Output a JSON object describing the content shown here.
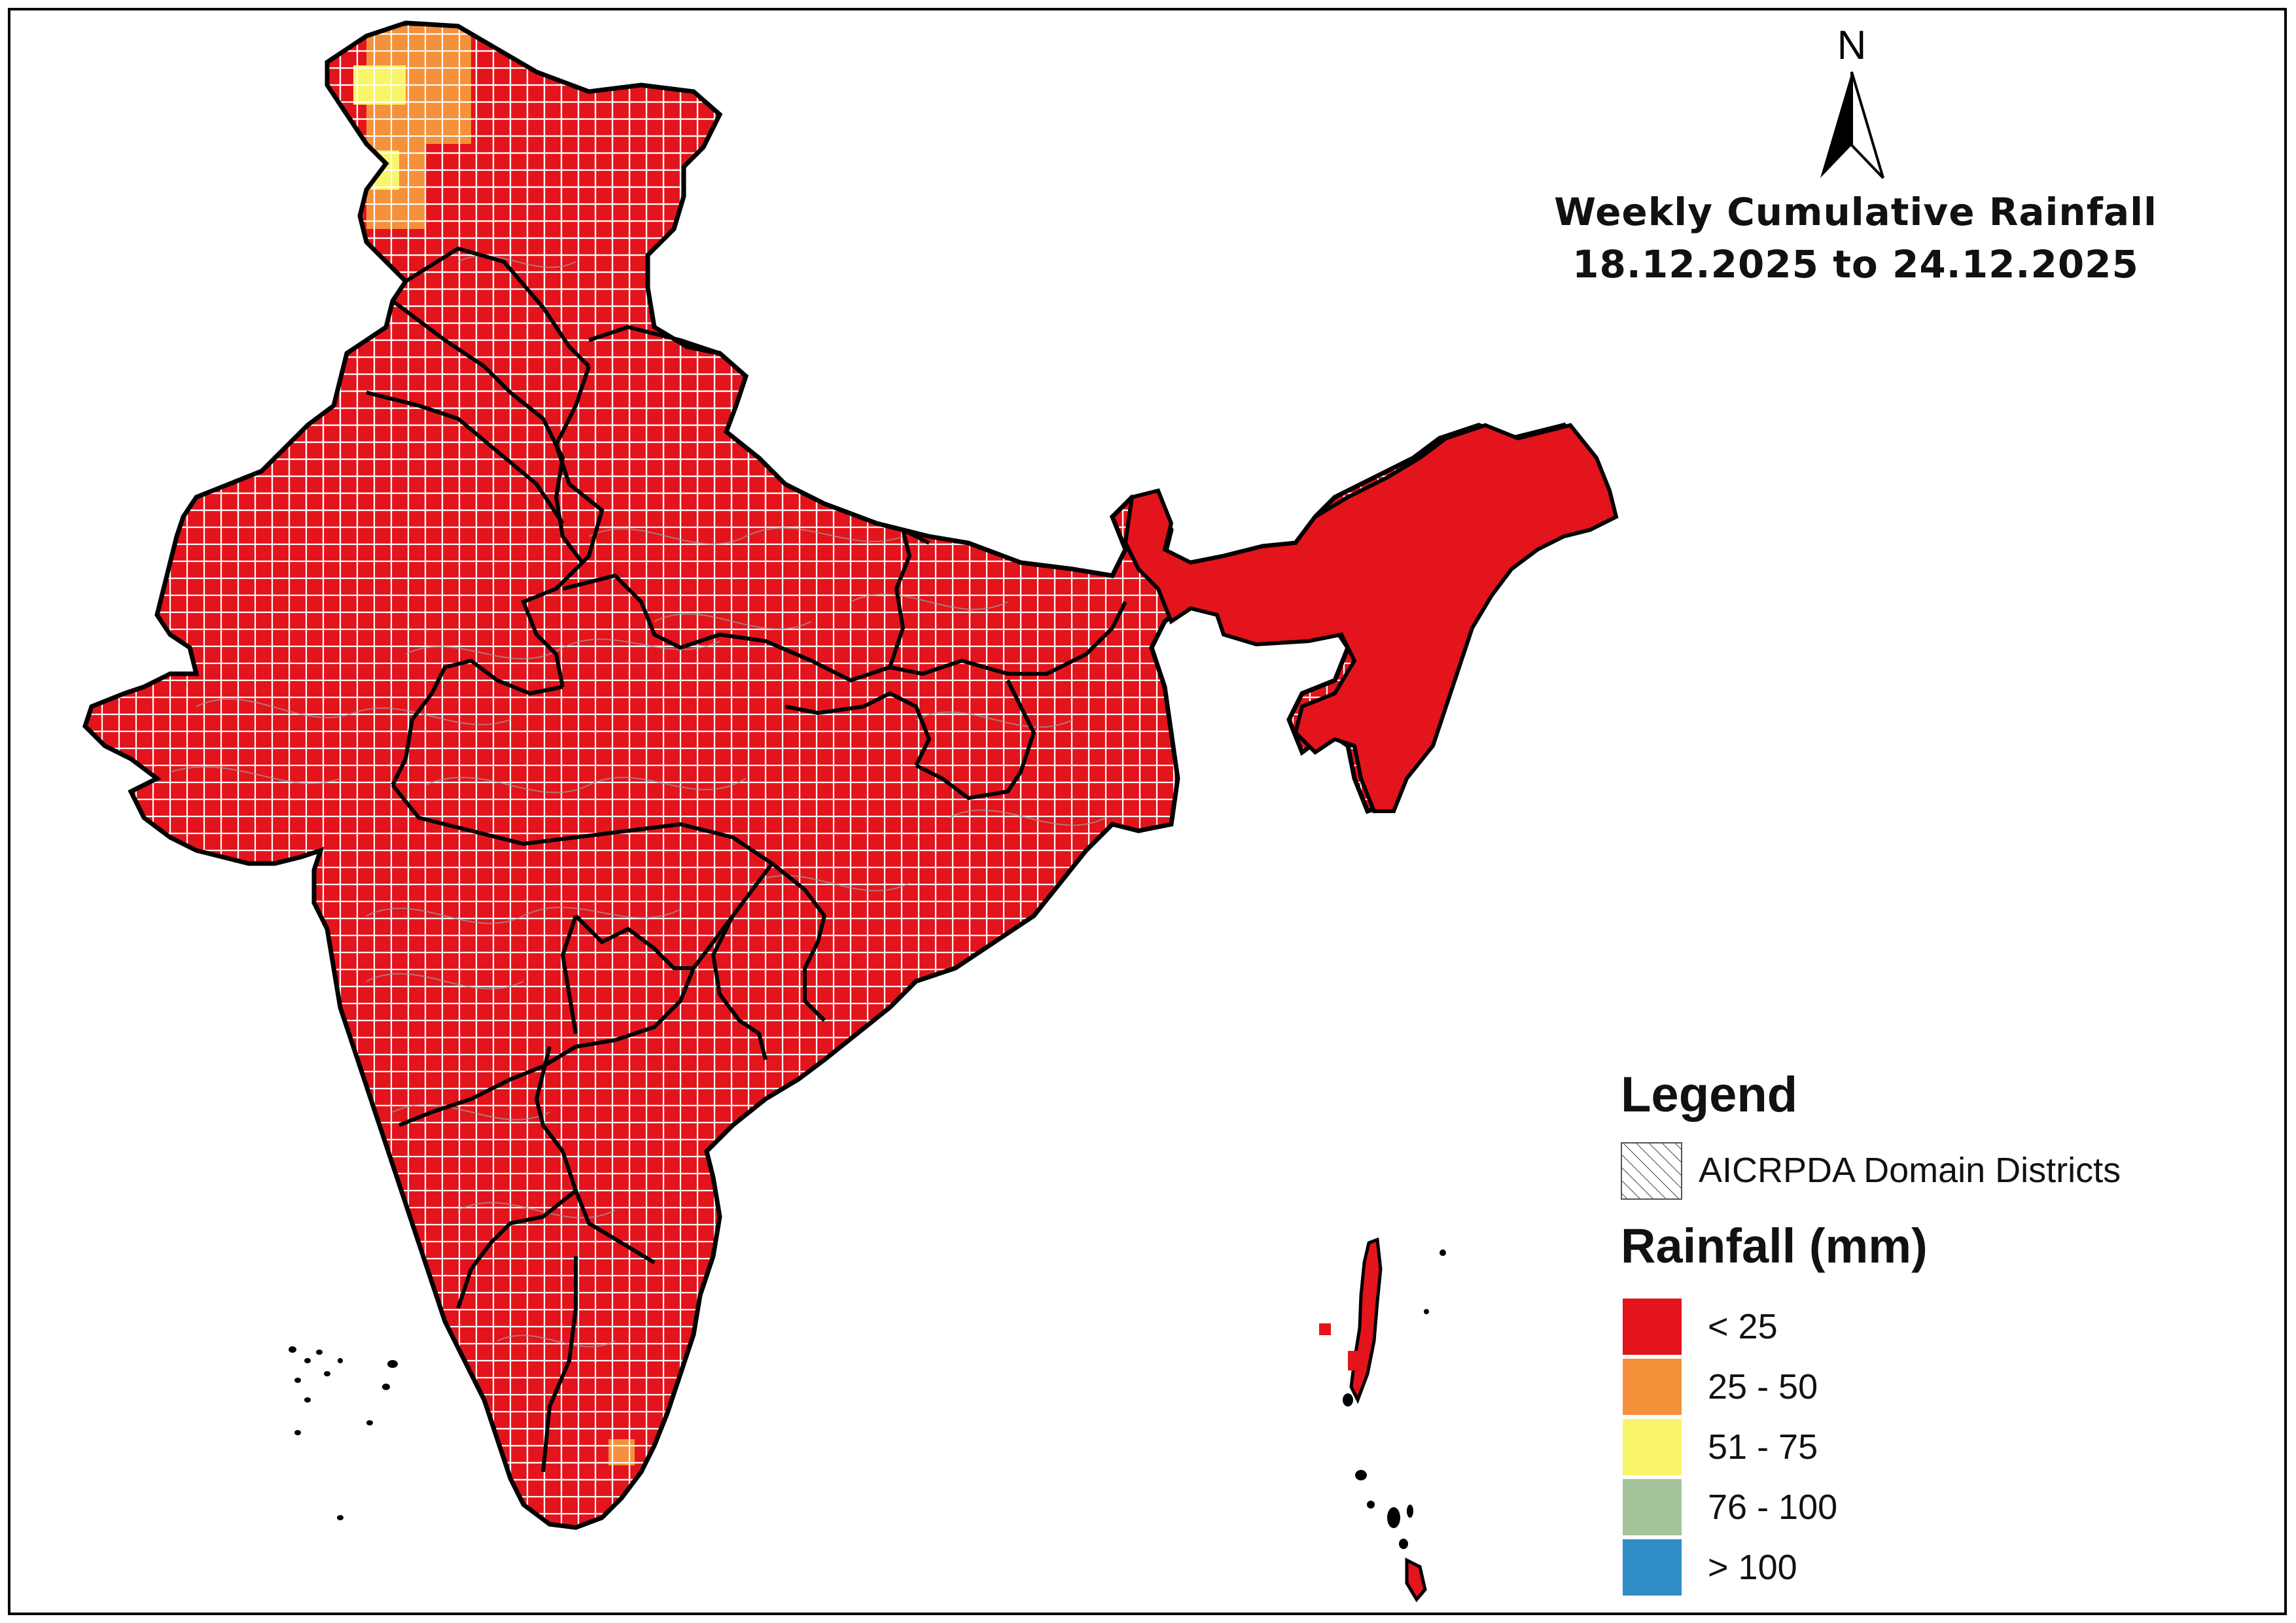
{
  "title": {
    "line1": "Weekly Cumulative Rainfall",
    "line2": "18.12.2025 to 24.12.2025"
  },
  "north_arrow": {
    "label": "N"
  },
  "legend": {
    "heading": "Legend",
    "hatch_label": "AICRPDA Domain Districts",
    "rainfall_heading": "Rainfall (mm)",
    "classes": [
      {
        "label": "< 25",
        "color": "#e3141b"
      },
      {
        "label": "25 - 50",
        "color": "#f5913b"
      },
      {
        "label": "51 - 75",
        "color": "#f8f56a"
      },
      {
        "label": "76 - 100",
        "color": "#a3c39a"
      },
      {
        "label": "> 100",
        "color": "#2f8dc6"
      }
    ]
  },
  "colors": {
    "rain_lt25": "#e3141b",
    "rain_25_50": "#f5913b",
    "rain_51_75": "#f8f56a",
    "boundary": "#000000",
    "grid": "#ffffff",
    "district_lines": "#9a9a9a"
  }
}
